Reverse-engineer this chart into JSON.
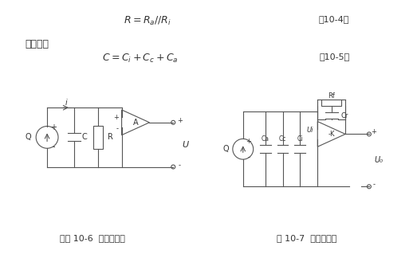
{
  "title_eq1": "$R = R_a // R_i$",
  "label_eq1": "（10-4）",
  "text_equiv": "等效电容",
  "title_eq2": "$C = C_i + C_c + C_a$",
  "label_eq2": "（10-5）",
  "caption1": "如图 10-6  电压放大器",
  "caption2": "图 10-7  电荷放大器",
  "bg_color": "#ffffff",
  "line_color": "#555555",
  "text_color": "#333333"
}
